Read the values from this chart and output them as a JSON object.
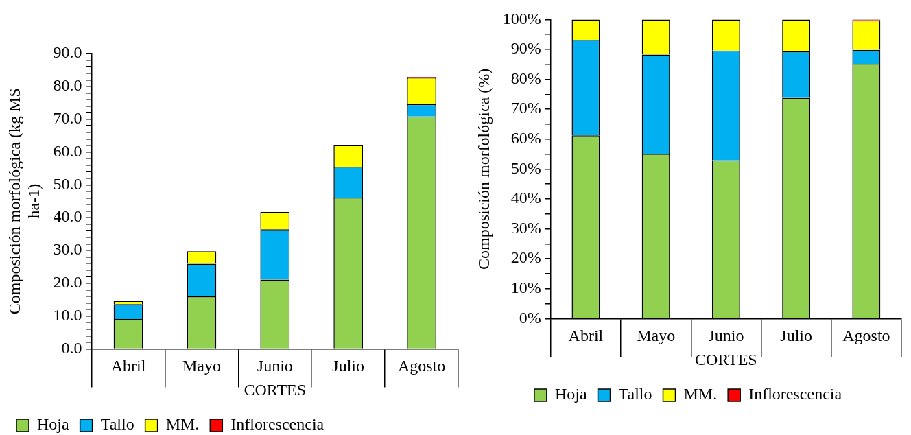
{
  "chart_data": [
    {
      "type": "bar",
      "stacked": true,
      "categories": [
        "Abril",
        "Mayo",
        "Junio",
        "Julio",
        "Agosto"
      ],
      "xlabel": "CORTES",
      "ylabel": "Composición morfológica (kg MS ha-1)",
      "legend": "bottom left",
      "ylim": [
        0,
        90
      ],
      "yticks": [
        {
          "value": 0,
          "label": "0.0"
        },
        {
          "value": 2,
          "label": null
        },
        {
          "value": 4,
          "label": null
        },
        {
          "value": 6,
          "label": null
        },
        {
          "value": 8,
          "label": null
        },
        {
          "value": 10,
          "label": "10.0"
        },
        {
          "value": 12,
          "label": null
        },
        {
          "value": 14,
          "label": null
        },
        {
          "value": 16,
          "label": null
        },
        {
          "value": 18,
          "label": null
        },
        {
          "value": 20,
          "label": "20.0"
        },
        {
          "value": 22,
          "label": null
        },
        {
          "value": 24,
          "label": null
        },
        {
          "value": 26,
          "label": null
        },
        {
          "value": 28,
          "label": null
        },
        {
          "value": 30,
          "label": "30.0"
        },
        {
          "value": 32,
          "label": null
        },
        {
          "value": 34,
          "label": null
        },
        {
          "value": 36,
          "label": null
        },
        {
          "value": 38,
          "label": null
        },
        {
          "value": 40,
          "label": "40.0"
        },
        {
          "value": 42,
          "label": null
        },
        {
          "value": 44,
          "label": null
        },
        {
          "value": 46,
          "label": null
        },
        {
          "value": 48,
          "label": null
        },
        {
          "value": 50,
          "label": "50.0"
        },
        {
          "value": 52,
          "label": null
        },
        {
          "value": 54,
          "label": null
        },
        {
          "value": 56,
          "label": null
        },
        {
          "value": 58,
          "label": null
        },
        {
          "value": 60,
          "label": "60.0"
        },
        {
          "value": 62,
          "label": null
        },
        {
          "value": 64,
          "label": null
        },
        {
          "value": 66,
          "label": null
        },
        {
          "value": 68,
          "label": null
        },
        {
          "value": 70,
          "label": "70.0"
        },
        {
          "value": 72,
          "label": null
        },
        {
          "value": 74,
          "label": null
        },
        {
          "value": 76,
          "label": null
        },
        {
          "value": 78,
          "label": null
        },
        {
          "value": 80,
          "label": "80.0"
        },
        {
          "value": 82,
          "label": null
        },
        {
          "value": 84,
          "label": null
        },
        {
          "value": 86,
          "label": null
        },
        {
          "value": 88,
          "label": null
        },
        {
          "value": 90,
          "label": "90.0"
        }
      ],
      "series": [
        {
          "name": "Hoja",
          "color": "#92d050",
          "values": [
            9.1,
            16.0,
            21.1,
            46.1,
            70.8
          ]
        },
        {
          "name": "Tallo",
          "color": "#00b0f0",
          "values": [
            4.5,
            9.9,
            15.3,
            9.4,
            3.8
          ]
        },
        {
          "name": "MM.",
          "color": "#ffff00",
          "values": [
            1.0,
            3.8,
            5.3,
            6.6,
            8.1
          ]
        },
        {
          "name": "Inflorescencia",
          "color": "#ff0000",
          "values": [
            0,
            0,
            0,
            0,
            0.2
          ]
        }
      ]
    },
    {
      "type": "bar",
      "stacked": true,
      "categories": [
        "Abril",
        "Mayo",
        "Junio",
        "Julio",
        "Agosto"
      ],
      "xlabel": "CORTES",
      "ylabel": "Composición morfológica (%)",
      "legend": "bottom",
      "ylim": [
        0,
        100
      ],
      "yticks": [
        {
          "value": 0,
          "label": "0%"
        },
        {
          "value": 5,
          "label": null
        },
        {
          "value": 10,
          "label": "10%"
        },
        {
          "value": 15,
          "label": null
        },
        {
          "value": 20,
          "label": "20%"
        },
        {
          "value": 25,
          "label": null
        },
        {
          "value": 30,
          "label": "30%"
        },
        {
          "value": 35,
          "label": null
        },
        {
          "value": 40,
          "label": "40%"
        },
        {
          "value": 45,
          "label": null
        },
        {
          "value": 50,
          "label": "50%"
        },
        {
          "value": 55,
          "label": null
        },
        {
          "value": 60,
          "label": "60%"
        },
        {
          "value": 65,
          "label": null
        },
        {
          "value": 70,
          "label": "70%"
        },
        {
          "value": 75,
          "label": null
        },
        {
          "value": 80,
          "label": "80%"
        },
        {
          "value": 85,
          "label": null
        },
        {
          "value": 90,
          "label": "90%"
        },
        {
          "value": 95,
          "label": null
        },
        {
          "value": 100,
          "label": "100%"
        }
      ],
      "series": [
        {
          "name": "Hoja",
          "color": "#92d050",
          "values": [
            61.3,
            55.1,
            52.9,
            73.8,
            85.2
          ]
        },
        {
          "name": "Tallo",
          "color": "#00b0f0",
          "values": [
            31.9,
            33.2,
            36.7,
            15.5,
            4.6
          ]
        },
        {
          "name": "MM.",
          "color": "#ffff00",
          "values": [
            6.8,
            11.7,
            10.4,
            10.7,
            9.9
          ]
        },
        {
          "name": "Inflorescencia",
          "color": "#ff0000",
          "values": [
            0,
            0,
            0,
            0,
            0.3
          ]
        }
      ]
    }
  ]
}
